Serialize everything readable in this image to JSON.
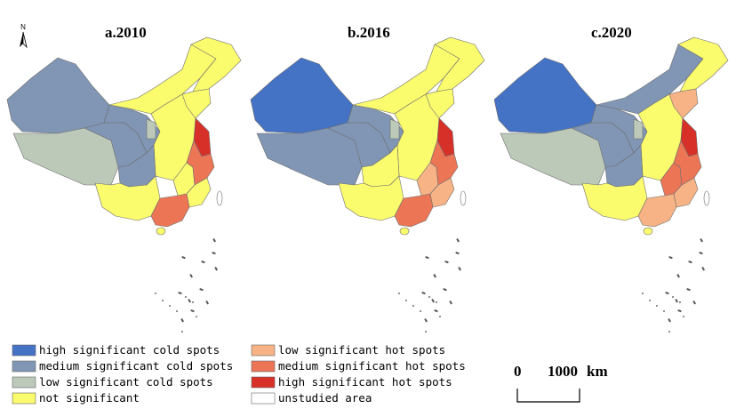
{
  "colors": {
    "high_cold": "#4472c4",
    "medium_cold": "#8096b4",
    "low_cold": "#bcc9b9",
    "not_significant": "#fbfb6e",
    "low_hot": "#f7b385",
    "medium_hot": "#ec7556",
    "high_hot": "#d73028",
    "unstudied": "#ffffff",
    "border": "#6e6e6e"
  },
  "north_arrow": {
    "label": "N",
    "icon": "north-arrow-icon"
  },
  "panels": [
    {
      "title": "a.2010",
      "regions": {
        "xinjiang": "medium_cold",
        "tibet": "low_cold",
        "qinghai": "medium_cold",
        "gansu": "medium_cold",
        "innermongolia": "not_significant",
        "northeast": "not_significant",
        "ningxia": "low_cold",
        "central_north": "not_significant",
        "sichuan": "medium_cold",
        "southwest": "not_significant",
        "coastal_north": "high_hot",
        "coastal_mid": "medium_hot",
        "fujian": "not_significant",
        "guangdong": "medium_hot",
        "jiangxi": "not_significant",
        "shandong": "not_significant"
      }
    },
    {
      "title": "b.2016",
      "regions": {
        "xinjiang": "high_cold",
        "tibet": "medium_cold",
        "qinghai": "medium_cold",
        "gansu": "medium_cold",
        "innermongolia": "not_significant",
        "northeast": "not_significant",
        "ningxia": "low_cold",
        "central_north": "not_significant",
        "sichuan": "not_significant",
        "southwest": "not_significant",
        "coastal_north": "high_hot",
        "coastal_mid": "medium_hot",
        "fujian": "low_hot",
        "guangdong": "medium_hot",
        "jiangxi": "low_hot",
        "shandong": "not_significant"
      }
    },
    {
      "title": "c.2020",
      "regions": {
        "xinjiang": "high_cold",
        "tibet": "low_cold",
        "qinghai": "medium_cold",
        "gansu": "medium_cold",
        "innermongolia": "medium_cold",
        "northeast": "not_significant",
        "ningxia": "low_cold",
        "central_north": "not_significant",
        "sichuan": "medium_cold",
        "southwest": "not_significant",
        "coastal_north": "high_hot",
        "coastal_mid": "medium_hot",
        "fujian": "low_hot",
        "guangdong": "low_hot",
        "jiangxi": "medium_hot",
        "shandong": "low_hot"
      }
    }
  ],
  "legend": {
    "left": [
      {
        "key": "high_cold",
        "label": "high significant cold spots"
      },
      {
        "key": "medium_cold",
        "label": "medium significant cold spots"
      },
      {
        "key": "low_cold",
        "label": "low significant cold spots"
      },
      {
        "key": "not_significant",
        "label": "not significant"
      }
    ],
    "right": [
      {
        "key": "low_hot",
        "label": "low significant hot spots"
      },
      {
        "key": "medium_hot",
        "label": "medium significant hot spots"
      },
      {
        "key": "high_hot",
        "label": "high significant hot spots"
      },
      {
        "key": "unstudied",
        "label": "unstudied area"
      }
    ]
  },
  "scale_bar": {
    "start_label": "0",
    "end_label": "1000",
    "unit": "km"
  }
}
